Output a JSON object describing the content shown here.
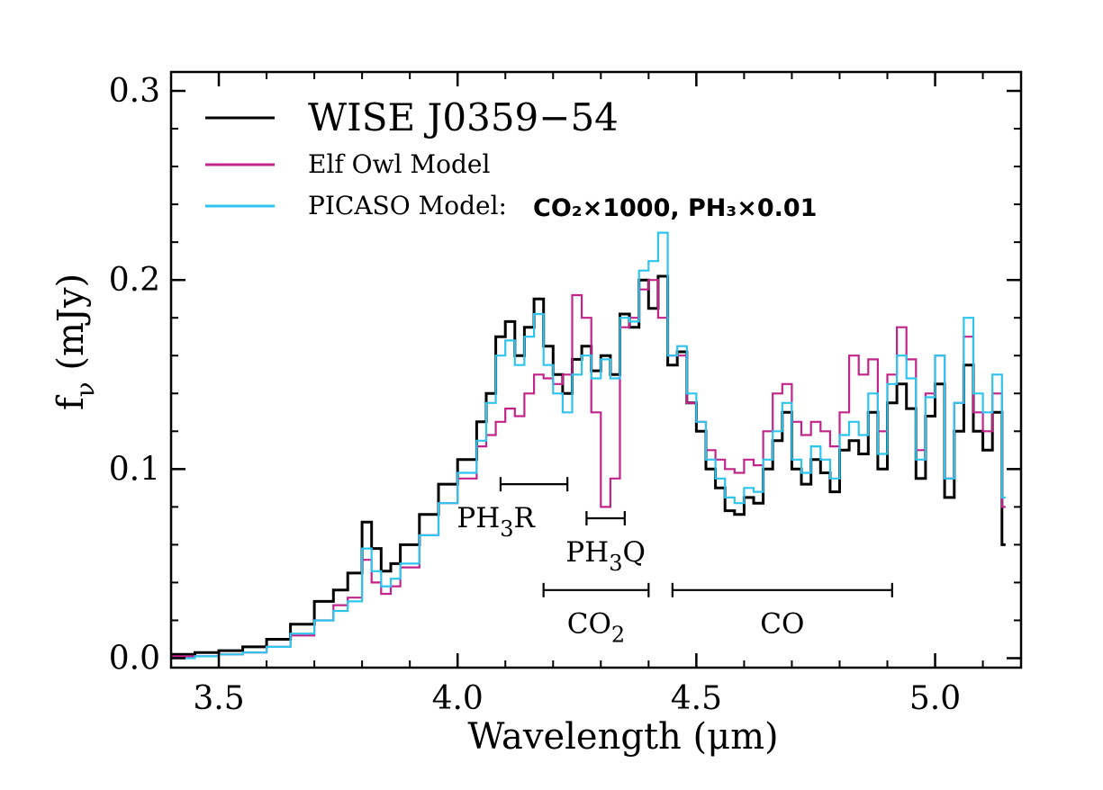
{
  "chart_data": {
    "type": "line",
    "xlabel": "Wavelength (μm)",
    "ylabel": "f_ν (mJy)",
    "ylabel_base": "f",
    "ylabel_sub": "ν",
    "ylabel_rest": " (mJy)",
    "xlim": [
      3.4,
      5.18
    ],
    "ylim": [
      -0.005,
      0.31
    ],
    "xticks": [
      3.5,
      4.0,
      4.5,
      5.0
    ],
    "xtick_labels": [
      "3.5",
      "4.0",
      "4.5",
      "5.0"
    ],
    "yticks": [
      0.0,
      0.1,
      0.2,
      0.3
    ],
    "ytick_labels": [
      "0.0",
      "0.1",
      "0.2",
      "0.3"
    ],
    "grid": false,
    "legend_position": "top-left",
    "series": [
      {
        "name": "WISE J0359−54",
        "color": "#000000",
        "draw": "steps",
        "points": [
          [
            3.4,
            0.002
          ],
          [
            3.45,
            0.003
          ],
          [
            3.5,
            0.004
          ],
          [
            3.55,
            0.006
          ],
          [
            3.6,
            0.01
          ],
          [
            3.65,
            0.018
          ],
          [
            3.7,
            0.03
          ],
          [
            3.74,
            0.036
          ],
          [
            3.77,
            0.045
          ],
          [
            3.8,
            0.072
          ],
          [
            3.82,
            0.058
          ],
          [
            3.84,
            0.046
          ],
          [
            3.86,
            0.05
          ],
          [
            3.88,
            0.06
          ],
          [
            3.92,
            0.076
          ],
          [
            3.96,
            0.092
          ],
          [
            4.0,
            0.105
          ],
          [
            4.04,
            0.125
          ],
          [
            4.06,
            0.14
          ],
          [
            4.08,
            0.17
          ],
          [
            4.1,
            0.178
          ],
          [
            4.12,
            0.16
          ],
          [
            4.14,
            0.175
          ],
          [
            4.16,
            0.19
          ],
          [
            4.18,
            0.165
          ],
          [
            4.2,
            0.15
          ],
          [
            4.22,
            0.14
          ],
          [
            4.24,
            0.158
          ],
          [
            4.26,
            0.165
          ],
          [
            4.28,
            0.152
          ],
          [
            4.3,
            0.16
          ],
          [
            4.32,
            0.15
          ],
          [
            4.34,
            0.182
          ],
          [
            4.36,
            0.175
          ],
          [
            4.38,
            0.2
          ],
          [
            4.4,
            0.185
          ],
          [
            4.42,
            0.202
          ],
          [
            4.44,
            0.155
          ],
          [
            4.46,
            0.162
          ],
          [
            4.48,
            0.135
          ],
          [
            4.5,
            0.12
          ],
          [
            4.52,
            0.1
          ],
          [
            4.54,
            0.09
          ],
          [
            4.56,
            0.078
          ],
          [
            4.58,
            0.076
          ],
          [
            4.6,
            0.085
          ],
          [
            4.62,
            0.082
          ],
          [
            4.64,
            0.1
          ],
          [
            4.66,
            0.115
          ],
          [
            4.68,
            0.13
          ],
          [
            4.7,
            0.1
          ],
          [
            4.72,
            0.092
          ],
          [
            4.74,
            0.105
          ],
          [
            4.76,
            0.098
          ],
          [
            4.78,
            0.088
          ],
          [
            4.8,
            0.11
          ],
          [
            4.82,
            0.115
          ],
          [
            4.84,
            0.108
          ],
          [
            4.86,
            0.13
          ],
          [
            4.88,
            0.1
          ],
          [
            4.9,
            0.135
          ],
          [
            4.92,
            0.145
          ],
          [
            4.94,
            0.132
          ],
          [
            4.96,
            0.095
          ],
          [
            4.98,
            0.128
          ],
          [
            5.0,
            0.145
          ],
          [
            5.02,
            0.085
          ],
          [
            5.04,
            0.12
          ],
          [
            5.06,
            0.155
          ],
          [
            5.08,
            0.12
          ],
          [
            5.1,
            0.11
          ],
          [
            5.12,
            0.13
          ],
          [
            5.14,
            0.06
          ]
        ]
      },
      {
        "name": "Elf Owl Model",
        "color": "#c2248a",
        "draw": "steps",
        "points": [
          [
            3.4,
            0.001
          ],
          [
            3.45,
            0.001
          ],
          [
            3.5,
            0.002
          ],
          [
            3.55,
            0.003
          ],
          [
            3.6,
            0.006
          ],
          [
            3.65,
            0.012
          ],
          [
            3.7,
            0.02
          ],
          [
            3.74,
            0.028
          ],
          [
            3.77,
            0.032
          ],
          [
            3.8,
            0.052
          ],
          [
            3.82,
            0.04
          ],
          [
            3.84,
            0.034
          ],
          [
            3.86,
            0.038
          ],
          [
            3.88,
            0.048
          ],
          [
            3.92,
            0.065
          ],
          [
            3.96,
            0.082
          ],
          [
            4.0,
            0.095
          ],
          [
            4.04,
            0.112
          ],
          [
            4.06,
            0.118
          ],
          [
            4.08,
            0.125
          ],
          [
            4.1,
            0.132
          ],
          [
            4.12,
            0.128
          ],
          [
            4.14,
            0.14
          ],
          [
            4.16,
            0.15
          ],
          [
            4.18,
            0.148
          ],
          [
            4.2,
            0.145
          ],
          [
            4.22,
            0.15
          ],
          [
            4.24,
            0.192
          ],
          [
            4.26,
            0.18
          ],
          [
            4.28,
            0.13
          ],
          [
            4.3,
            0.08
          ],
          [
            4.32,
            0.095
          ],
          [
            4.34,
            0.175
          ],
          [
            4.36,
            0.18
          ],
          [
            4.38,
            0.195
          ],
          [
            4.4,
            0.2
          ],
          [
            4.42,
            0.18
          ],
          [
            4.44,
            0.16
          ],
          [
            4.46,
            0.16
          ],
          [
            4.48,
            0.135
          ],
          [
            4.5,
            0.125
          ],
          [
            4.52,
            0.11
          ],
          [
            4.54,
            0.105
          ],
          [
            4.56,
            0.1
          ],
          [
            4.58,
            0.098
          ],
          [
            4.6,
            0.105
          ],
          [
            4.62,
            0.102
          ],
          [
            4.64,
            0.12
          ],
          [
            4.66,
            0.14
          ],
          [
            4.68,
            0.145
          ],
          [
            4.7,
            0.125
          ],
          [
            4.72,
            0.118
          ],
          [
            4.74,
            0.125
          ],
          [
            4.76,
            0.12
          ],
          [
            4.78,
            0.112
          ],
          [
            4.8,
            0.13
          ],
          [
            4.82,
            0.16
          ],
          [
            4.84,
            0.15
          ],
          [
            4.86,
            0.158
          ],
          [
            4.88,
            0.12
          ],
          [
            4.9,
            0.15
          ],
          [
            4.92,
            0.175
          ],
          [
            4.94,
            0.158
          ],
          [
            4.96,
            0.11
          ],
          [
            4.98,
            0.14
          ],
          [
            5.0,
            0.16
          ],
          [
            5.02,
            0.095
          ],
          [
            5.04,
            0.135
          ],
          [
            5.06,
            0.17
          ],
          [
            5.08,
            0.13
          ],
          [
            5.1,
            0.12
          ],
          [
            5.12,
            0.14
          ],
          [
            5.14,
            0.08
          ]
        ]
      },
      {
        "name": "PICASO Model:",
        "name_suffix": "CO₂×1000, PH₃×0.01",
        "color": "#2ec4ee",
        "draw": "steps",
        "points": [
          [
            3.4,
            0.0
          ],
          [
            3.45,
            0.001
          ],
          [
            3.5,
            0.002
          ],
          [
            3.55,
            0.003
          ],
          [
            3.6,
            0.006
          ],
          [
            3.65,
            0.013
          ],
          [
            3.7,
            0.02
          ],
          [
            3.74,
            0.025
          ],
          [
            3.77,
            0.03
          ],
          [
            3.8,
            0.058
          ],
          [
            3.82,
            0.046
          ],
          [
            3.84,
            0.038
          ],
          [
            3.86,
            0.042
          ],
          [
            3.88,
            0.05
          ],
          [
            3.92,
            0.065
          ],
          [
            3.96,
            0.082
          ],
          [
            4.0,
            0.098
          ],
          [
            4.04,
            0.115
          ],
          [
            4.06,
            0.135
          ],
          [
            4.08,
            0.16
          ],
          [
            4.1,
            0.168
          ],
          [
            4.12,
            0.155
          ],
          [
            4.14,
            0.17
          ],
          [
            4.16,
            0.182
          ],
          [
            4.18,
            0.155
          ],
          [
            4.2,
            0.14
          ],
          [
            4.22,
            0.13
          ],
          [
            4.24,
            0.15
          ],
          [
            4.26,
            0.16
          ],
          [
            4.28,
            0.148
          ],
          [
            4.3,
            0.158
          ],
          [
            4.32,
            0.148
          ],
          [
            4.34,
            0.18
          ],
          [
            4.36,
            0.178
          ],
          [
            4.38,
            0.205
          ],
          [
            4.4,
            0.21
          ],
          [
            4.42,
            0.225
          ],
          [
            4.44,
            0.16
          ],
          [
            4.46,
            0.165
          ],
          [
            4.48,
            0.14
          ],
          [
            4.5,
            0.125
          ],
          [
            4.52,
            0.105
          ],
          [
            4.54,
            0.095
          ],
          [
            4.56,
            0.085
          ],
          [
            4.58,
            0.082
          ],
          [
            4.6,
            0.09
          ],
          [
            4.62,
            0.088
          ],
          [
            4.64,
            0.105
          ],
          [
            4.66,
            0.12
          ],
          [
            4.68,
            0.135
          ],
          [
            4.7,
            0.105
          ],
          [
            4.72,
            0.098
          ],
          [
            4.74,
            0.112
          ],
          [
            4.76,
            0.105
          ],
          [
            4.78,
            0.095
          ],
          [
            4.8,
            0.118
          ],
          [
            4.82,
            0.125
          ],
          [
            4.84,
            0.118
          ],
          [
            4.86,
            0.14
          ],
          [
            4.88,
            0.108
          ],
          [
            4.9,
            0.145
          ],
          [
            4.92,
            0.16
          ],
          [
            4.94,
            0.148
          ],
          [
            4.96,
            0.105
          ],
          [
            4.98,
            0.138
          ],
          [
            5.0,
            0.16
          ],
          [
            5.02,
            0.095
          ],
          [
            5.04,
            0.135
          ],
          [
            5.06,
            0.18
          ],
          [
            5.08,
            0.14
          ],
          [
            5.1,
            0.13
          ],
          [
            5.12,
            0.15
          ],
          [
            5.14,
            0.085
          ]
        ]
      }
    ],
    "annotations": [
      {
        "label_base": "PH",
        "label_sub": "3",
        "label_rest": "R",
        "x_range": [
          4.09,
          4.23
        ],
        "y": 0.092,
        "label_y": 0.074,
        "label_x": 4.08
      },
      {
        "label_base": "PH",
        "label_sub": "3",
        "label_rest": "Q",
        "x_range": [
          4.27,
          4.35
        ],
        "y": 0.074,
        "label_y": 0.056,
        "label_x": 4.31
      },
      {
        "label_base": "CO",
        "label_sub": "2",
        "label_rest": "",
        "x_range": [
          4.18,
          4.4
        ],
        "y": 0.036,
        "label_y": 0.018,
        "label_x": 4.29
      },
      {
        "label_base": "CO",
        "label_sub": "",
        "label_rest": "",
        "x_range": [
          4.45,
          4.91
        ],
        "y": 0.036,
        "label_y": 0.018,
        "label_x": 4.68
      }
    ]
  }
}
